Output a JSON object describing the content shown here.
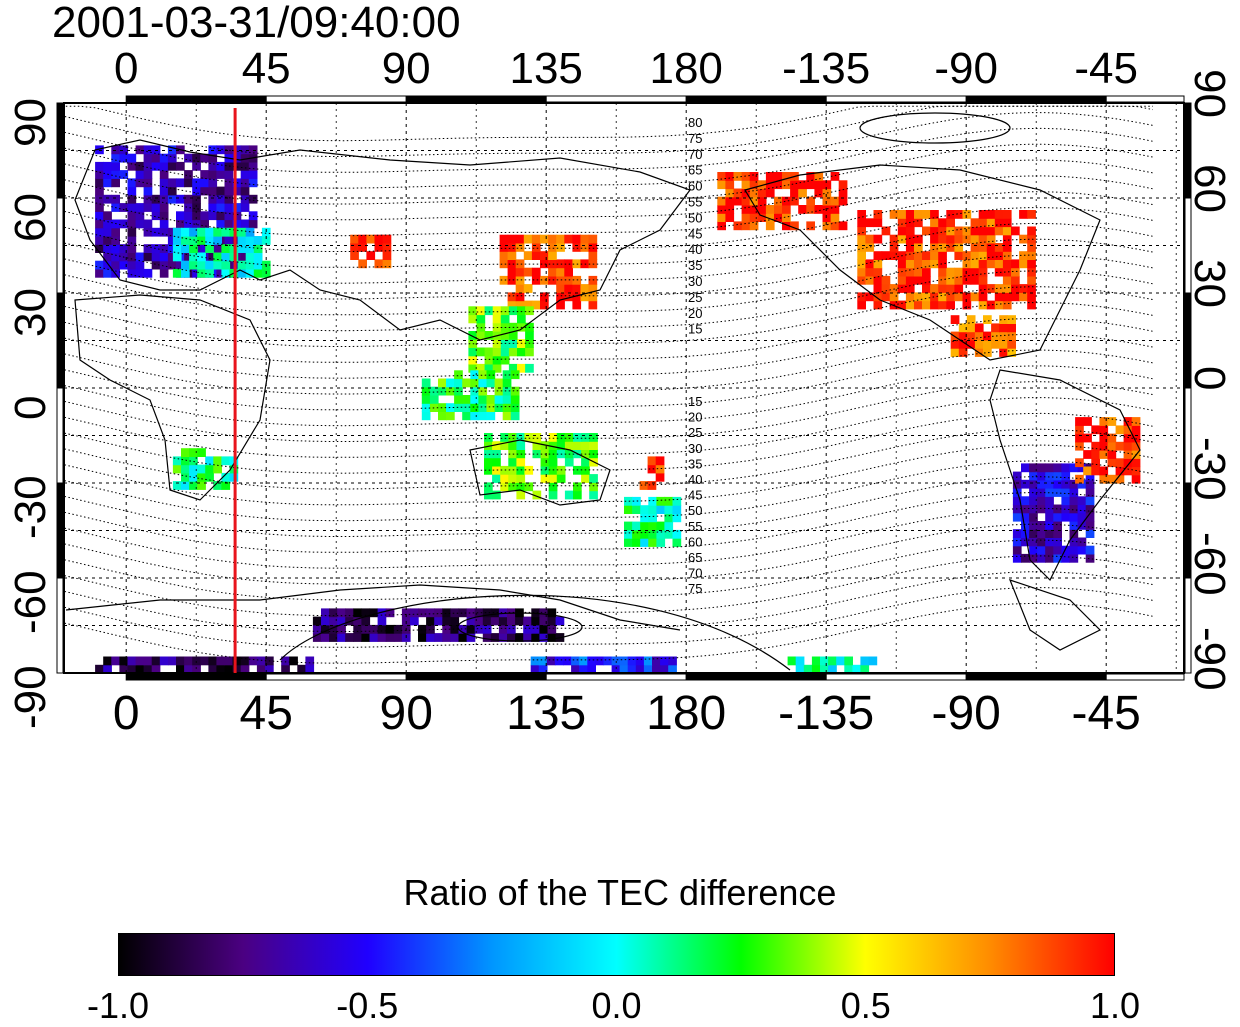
{
  "title": "2001-03-31/09:40:00",
  "map": {
    "projection": "cylindrical",
    "lon_center": 160,
    "lon_ticks_top": [
      "0",
      "45",
      "90",
      "135",
      "180",
      "-135",
      "-90",
      "-45"
    ],
    "lon_ticks_bottom": [
      "0",
      "45",
      "90",
      "135",
      "180",
      "-135",
      "-90",
      "-45"
    ],
    "lat_ticks_left": [
      "90",
      "60",
      "30",
      "0",
      "-30",
      "-60",
      "-90"
    ],
    "lat_ticks_right": [
      "90",
      "60",
      "30",
      "0",
      "-30",
      "-60",
      "-90"
    ],
    "grid": true,
    "terminator_longitude": 35,
    "terminator_color": "#e8141c",
    "contour_labels_north": [
      "80",
      "75",
      "70",
      "65",
      "60",
      "55",
      "50",
      "45",
      "40",
      "35",
      "30",
      "25",
      "20",
      "15"
    ],
    "contour_labels_south": [
      "15",
      "20",
      "25",
      "30",
      "35",
      "40",
      "45",
      "50",
      "55",
      "60",
      "65",
      "70",
      "75"
    ]
  },
  "colorbar": {
    "title": "Ratio of the TEC difference",
    "min": -1.0,
    "max": 1.0,
    "tick_labels": [
      "-1.0",
      "-0.5",
      "0.0",
      "0.5",
      "1.0"
    ],
    "colors": [
      "#000000",
      "#4b0082",
      "#2000ff",
      "#0096ff",
      "#00ffff",
      "#00ff00",
      "#ffff00",
      "#ff8c00",
      "#ff0000"
    ]
  },
  "chart_data": {
    "type": "heatmap",
    "title": "2001-03-31/09:40:00",
    "colorbar_label": "Ratio of the TEC difference",
    "value_range": [
      -1.0,
      1.0
    ],
    "regions": [
      {
        "lat": [
          35,
          75
        ],
        "lon": [
          -10,
          40
        ],
        "value": -0.65
      },
      {
        "lat": [
          35,
          50
        ],
        "lon": [
          15,
          45
        ],
        "value": 0.0
      },
      {
        "lat": [
          38,
          46
        ],
        "lon": [
          72,
          84
        ],
        "value": 0.95
      },
      {
        "lat": [
          25,
          48
        ],
        "lon": [
          120,
          150
        ],
        "value": 0.9
      },
      {
        "lat": [
          5,
          25
        ],
        "lon": [
          110,
          130
        ],
        "value": 0.3
      },
      {
        "lat": [
          -10,
          5
        ],
        "lon": [
          95,
          125
        ],
        "value": 0.2
      },
      {
        "lat": [
          -32,
          -20
        ],
        "lon": [
          15,
          35
        ],
        "value": 0.15
      },
      {
        "lat": [
          -35,
          -15
        ],
        "lon": [
          115,
          150
        ],
        "value": 0.3
      },
      {
        "lat": [
          -50,
          -35
        ],
        "lon": [
          160,
          178
        ],
        "value": 0.1
      },
      {
        "lat": [
          -32,
          -22
        ],
        "lon": [
          165,
          172
        ],
        "value": 0.95
      },
      {
        "lat": [
          50,
          68
        ],
        "lon": [
          -170,
          -130
        ],
        "value": 0.95
      },
      {
        "lat": [
          25,
          55
        ],
        "lon": [
          -125,
          -70
        ],
        "value": 0.9
      },
      {
        "lat": [
          10,
          22
        ],
        "lon": [
          -95,
          -75
        ],
        "value": 0.85
      },
      {
        "lat": [
          -55,
          -25
        ],
        "lon": [
          -75,
          -50
        ],
        "value": -0.6
      },
      {
        "lat": [
          -30,
          -10
        ],
        "lon": [
          -55,
          -35
        ],
        "value": 0.9
      },
      {
        "lat": [
          -80,
          -72
        ],
        "lon": [
          60,
          140
        ],
        "value": -0.8
      },
      {
        "lat": [
          -90,
          -86
        ],
        "lon": [
          -10,
          60
        ],
        "value": -0.8
      },
      {
        "lat": [
          -90,
          -86
        ],
        "lon": [
          130,
          175
        ],
        "value": -0.45
      },
      {
        "lat": [
          -90,
          -86
        ],
        "lon": [
          -150,
          -120
        ],
        "value": 0.05
      }
    ]
  }
}
